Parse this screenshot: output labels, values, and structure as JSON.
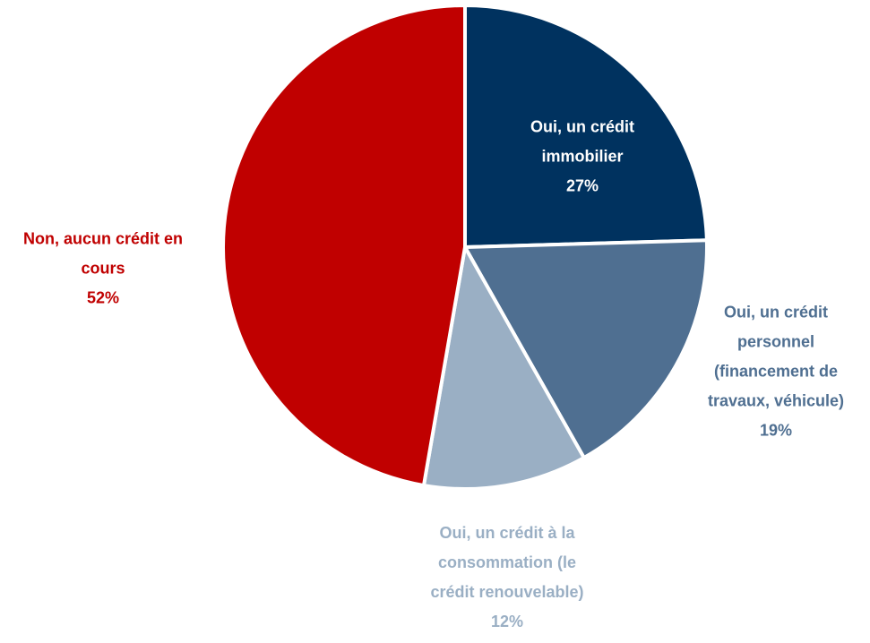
{
  "chart_data": {
    "type": "pie",
    "categories": [
      "Oui, un crédit immobilier",
      "Oui, un crédit personnel (financement de travaux, véhicule)",
      "Oui, un crédit à la consommation (le crédit renouvelable)",
      "Non, aucun crédit en cours"
    ],
    "values": [
      27,
      19,
      12,
      52
    ],
    "value_labels": [
      "27%",
      "19%",
      "12%",
      "52%"
    ],
    "colors": [
      "#00325f",
      "#4f6f91",
      "#9aafc4",
      "#c00000"
    ],
    "label_colors": [
      "#ffffff",
      "#4f6f91",
      "#9aafc4",
      "#c00000"
    ]
  }
}
